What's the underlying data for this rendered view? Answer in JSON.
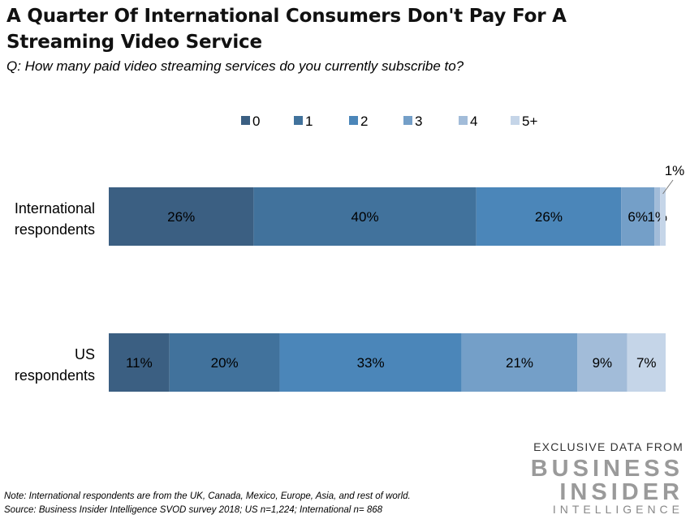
{
  "title": "A Quarter Of International Consumers Don't Pay For A Streaming Video Service",
  "subtitle": "Q: How many paid video streaming services do you currently subscribe to?",
  "chart_data": {
    "type": "bar",
    "orientation": "horizontal-stacked-100",
    "categories": [
      "International respondents",
      "US respondents"
    ],
    "series": [
      {
        "name": "0",
        "values": [
          26,
          11
        ],
        "color": "#3b5f82",
        "labels": [
          "26%",
          "11%"
        ]
      },
      {
        "name": "1",
        "values": [
          40,
          20
        ],
        "color": "#41729c",
        "labels": [
          "40%",
          "20%"
        ]
      },
      {
        "name": "2",
        "values": [
          26,
          33
        ],
        "color": "#4b86b9",
        "labels": [
          "26%",
          "33%"
        ]
      },
      {
        "name": "3",
        "values": [
          6,
          21
        ],
        "color": "#749fc8",
        "labels": [
          "6%",
          "21%"
        ]
      },
      {
        "name": "4",
        "values": [
          1,
          9
        ],
        "color": "#a2bcd9",
        "labels": [
          "1%",
          "9%"
        ]
      },
      {
        "name": "5+",
        "values": [
          1,
          7
        ],
        "color": "#c5d5e8",
        "labels": [
          "1%",
          "7%"
        ]
      }
    ],
    "legend_position": "top",
    "grid": false
  },
  "note": "Note: International respondents are from the UK, Canada, Mexico, Europe, Asia, and rest of world.",
  "source": "Source: Business Insider Intelligence SVOD survey 2018; US n=1,224; International n= 868",
  "branding": {
    "line1": "EXCLUSIVE DATA FROM",
    "line2": "BUSINESS",
    "line3": "INSIDER",
    "line4": "INTELLIGENCE"
  }
}
